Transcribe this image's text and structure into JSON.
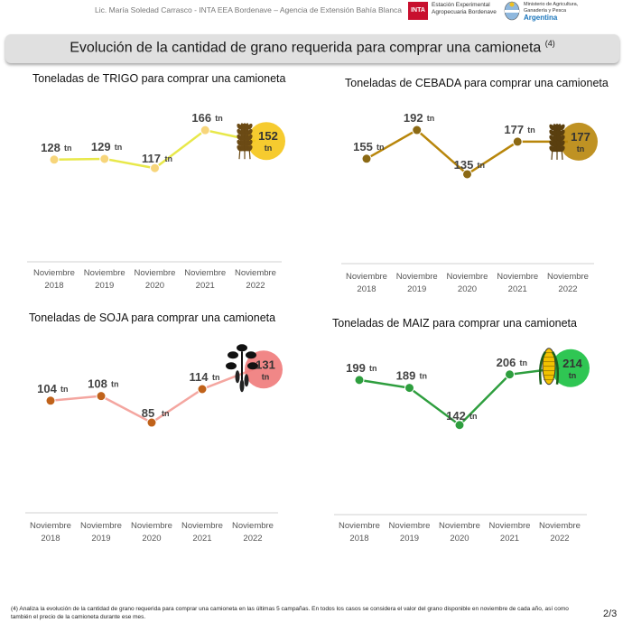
{
  "header": {
    "author": "Lic. María Soledad Carrasco - INTA EEA Bordenave – Agencia de Extensión Bahía Blanca",
    "inta_logo": "INTA",
    "inta_line1": "Estación Experimental",
    "inta_line2": "Agropecuaria Bordenave",
    "ministry_line1": "Ministerio de Agricultura,",
    "ministry_line2": "Ganadería y Pesca",
    "ministry_country": "Argentina"
  },
  "banner": {
    "title": "Evolución de la cantidad de grano requerida para comprar una camioneta",
    "footnote_ref": "(4)"
  },
  "chart_data": [
    {
      "type": "line",
      "title": "Toneladas de TRIGO para comprar una camioneta",
      "categories": [
        [
          "Noviembre",
          "2018"
        ],
        [
          "Noviembre",
          "2019"
        ],
        [
          "Noviembre",
          "2020"
        ],
        [
          "Noviembre",
          "2021"
        ],
        [
          "Noviembre",
          "2022"
        ]
      ],
      "values": [
        128,
        129,
        117,
        166,
        152
      ],
      "unit": "tn",
      "line_color": "#e8e84a",
      "marker_color": "#f7d57a",
      "highlight_color": "#f5c518",
      "icon": "wheat-icon",
      "ylim": [
        80,
        200
      ]
    },
    {
      "type": "line",
      "title": "Toneladas de CEBADA para comprar una camioneta",
      "categories": [
        [
          "Noviembre",
          "2018"
        ],
        [
          "Noviembre",
          "2019"
        ],
        [
          "Noviembre",
          "2020"
        ],
        [
          "Noviembre",
          "2021"
        ],
        [
          "Noviembre",
          "2022"
        ]
      ],
      "values": [
        155,
        192,
        135,
        177,
        177
      ],
      "unit": "tn",
      "line_color": "#b8860b",
      "marker_color": "#8b6914",
      "highlight_color": "#b8860b",
      "icon": "barley-icon",
      "ylim": [
        100,
        220
      ]
    },
    {
      "type": "line",
      "title": "Toneladas de SOJA para comprar una camioneta",
      "categories": [
        [
          "Noviembre",
          "2018"
        ],
        [
          "Noviembre",
          "2019"
        ],
        [
          "Noviembre",
          "2020"
        ],
        [
          "Noviembre",
          "2021"
        ],
        [
          "Noviembre",
          "2022"
        ]
      ],
      "values": [
        104,
        108,
        85,
        114,
        131
      ],
      "unit": "tn",
      "line_color": "#f4a6a0",
      "marker_color": "#c0621a",
      "highlight_color": "#f07a7a",
      "icon": "soybean-icon",
      "ylim": [
        60,
        150
      ]
    },
    {
      "type": "line",
      "title": "Toneladas de MAIZ para comprar una camioneta",
      "categories": [
        [
          "Noviembre",
          "2018"
        ],
        [
          "Noviembre",
          "2019"
        ],
        [
          "Noviembre",
          "2020"
        ],
        [
          "Noviembre",
          "2021"
        ],
        [
          "Noviembre",
          "2022"
        ]
      ],
      "values": [
        199,
        189,
        142,
        206,
        214
      ],
      "unit": "tn",
      "line_color": "#2e9e3e",
      "marker_color": "#2e9e3e",
      "highlight_color": "#18c040",
      "icon": "corn-icon",
      "ylim": [
        120,
        240
      ]
    }
  ],
  "footnote": "(4) Analiza la evolución de la cantidad de grano requerida para comprar una camioneta en las últimas 5 campañas. En todos los casos se considera el valor del grano disponible en noviembre de cada año, así como también el precio de la camioneta durante ese mes.",
  "page": "2/3"
}
